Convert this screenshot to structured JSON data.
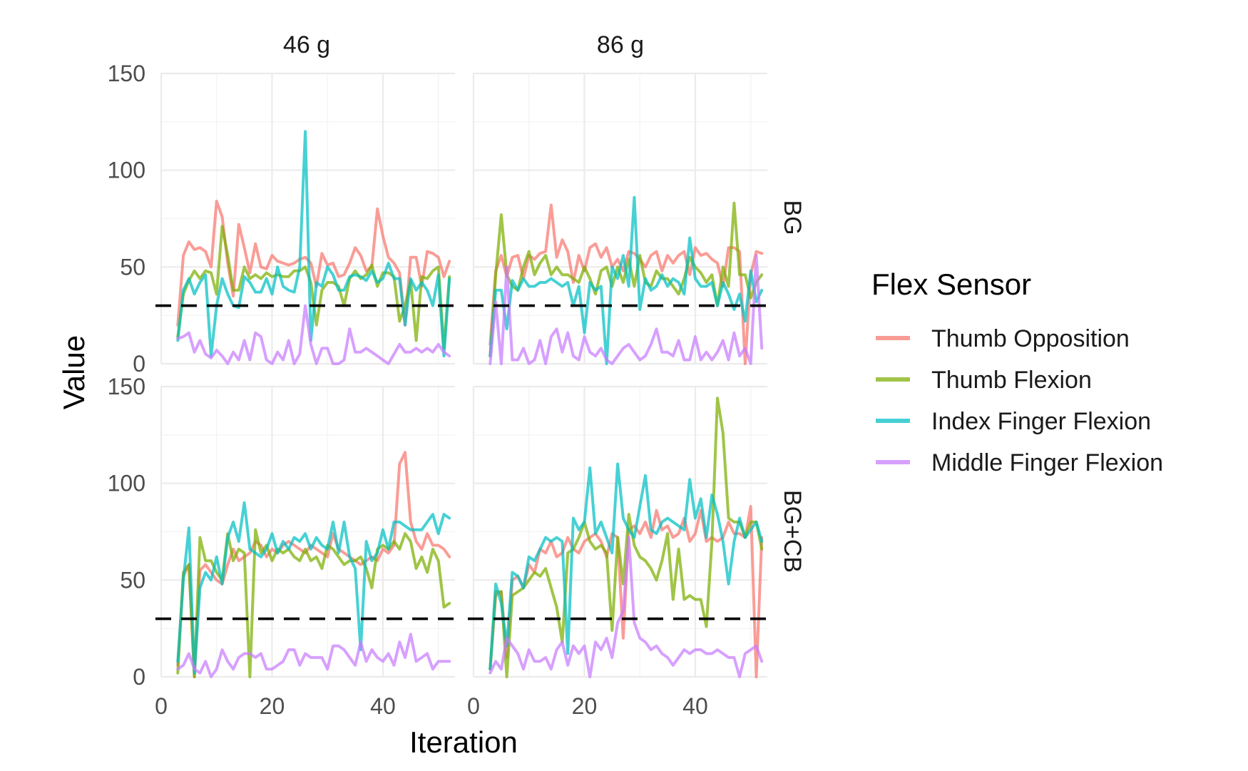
{
  "chart_data": {
    "type": "line",
    "layout": "facet-grid",
    "xlabel": "Iteration",
    "ylabel": "Value",
    "xlim": [
      0,
      53
    ],
    "ylim": [
      0,
      150
    ],
    "x_ticks": [
      0,
      20,
      40
    ],
    "y_ticks": [
      0,
      50,
      100,
      150
    ],
    "threshold": 30,
    "column_labels": [
      "46 g",
      "86 g"
    ],
    "row_labels": [
      "BG",
      "BG+CB"
    ],
    "grid": true,
    "legend": {
      "title": "Flex Sensor",
      "position": "right",
      "entries": [
        {
          "name": "Thumb Opposition",
          "color": "#f8766d"
        },
        {
          "name": "Thumb Flexion",
          "color": "#7cae00"
        },
        {
          "name": "Index Finger Flexion",
          "color": "#00bfc4"
        },
        {
          "name": "Middle Finger Flexion",
          "color": "#c77cff"
        }
      ]
    },
    "x": [
      3,
      4,
      5,
      6,
      7,
      8,
      9,
      10,
      11,
      12,
      13,
      14,
      15,
      16,
      17,
      18,
      19,
      20,
      21,
      22,
      23,
      24,
      25,
      26,
      27,
      28,
      29,
      30,
      31,
      32,
      33,
      34,
      35,
      36,
      37,
      38,
      39,
      40,
      41,
      42,
      43,
      44,
      45,
      46,
      47,
      48,
      49,
      50,
      51,
      52
    ],
    "panels": [
      {
        "row": "BG",
        "col": "46 g",
        "series": [
          {
            "name": "Thumb Opposition",
            "values": [
              20,
              56,
              63,
              59,
              60,
              58,
              50,
              84,
              76,
              52,
              35,
              72,
              60,
              47,
              62,
              50,
              49,
              56,
              53,
              52,
              51,
              52,
              54,
              55,
              52,
              40,
              57,
              51,
              52,
              45,
              46,
              52,
              60,
              56,
              48,
              50,
              80,
              66,
              55,
              52,
              47,
              20,
              55,
              55,
              40,
              58,
              57,
              55,
              45,
              53
            ]
          },
          {
            "name": "Thumb Flexion",
            "values": [
              14,
              36,
              43,
              48,
              44,
              48,
              47,
              36,
              71,
              56,
              38,
              38,
              50,
              44,
              46,
              44,
              47,
              45,
              46,
              45,
              45,
              48,
              48,
              50,
              42,
              20,
              38,
              42,
              42,
              40,
              30,
              44,
              48,
              44,
              46,
              51,
              40,
              47,
              47,
              45,
              22,
              30,
              43,
              12,
              45,
              44,
              48,
              50,
              8,
              45
            ]
          },
          {
            "name": "Index Finger Flexion",
            "values": [
              12,
              38,
              44,
              36,
              42,
              46,
              4,
              30,
              44,
              36,
              30,
              29,
              45,
              42,
              37,
              37,
              44,
              36,
              50,
              40,
              38,
              37,
              50,
              120,
              12,
              42,
              40,
              50,
              46,
              38,
              38,
              45,
              46,
              45,
              43,
              48,
              42,
              44,
              52,
              44,
              44,
              20,
              44,
              38,
              42,
              38,
              30,
              46,
              4,
              44
            ]
          },
          {
            "name": "Middle Finger Flexion",
            "values": [
              13,
              14,
              16,
              6,
              12,
              5,
              3,
              7,
              4,
              0,
              6,
              2,
              12,
              2,
              16,
              14,
              2,
              0,
              6,
              2,
              12,
              0,
              5,
              30,
              10,
              0,
              8,
              8,
              0,
              0,
              2,
              18,
              6,
              6,
              8,
              6,
              4,
              2,
              0,
              5,
              10,
              6,
              6,
              8,
              6,
              8,
              6,
              10,
              6,
              4
            ]
          }
        ]
      },
      {
        "row": "BG",
        "col": "86 g",
        "series": [
          {
            "name": "Thumb Opposition",
            "values": [
              10,
              48,
              56,
              45,
              55,
              56,
              44,
              56,
              54,
              57,
              58,
              82,
              55,
              64,
              58,
              42,
              56,
              48,
              60,
              62,
              55,
              60,
              50,
              54,
              48,
              58,
              57,
              54,
              50,
              56,
              58,
              48,
              56,
              52,
              56,
              58,
              46,
              60,
              56,
              57,
              54,
              52,
              40,
              60,
              60,
              58,
              0,
              46,
              58,
              57
            ]
          },
          {
            "name": "Thumb Flexion",
            "values": [
              4,
              46,
              77,
              46,
              40,
              38,
              50,
              58,
              46,
              52,
              56,
              46,
              50,
              46,
              46,
              44,
              42,
              50,
              44,
              36,
              48,
              50,
              40,
              50,
              42,
              54,
              40,
              56,
              42,
              40,
              48,
              44,
              44,
              40,
              36,
              44,
              55,
              50,
              47,
              42,
              46,
              30,
              50,
              40,
              83,
              46,
              46,
              34,
              42,
              46
            ]
          },
          {
            "name": "Index Finger Flexion",
            "values": [
              4,
              38,
              38,
              18,
              43,
              38,
              44,
              40,
              40,
              42,
              42,
              44,
              42,
              40,
              42,
              30,
              40,
              16,
              42,
              38,
              40,
              0,
              50,
              44,
              56,
              40,
              86,
              28,
              44,
              38,
              40,
              46,
              40,
              44,
              42,
              36,
              65,
              44,
              40,
              40,
              42,
              30,
              42,
              36,
              28,
              36,
              22,
              48,
              32,
              38
            ]
          },
          {
            "name": "Middle Finger Flexion",
            "values": [
              0,
              32,
              0,
              50,
              2,
              2,
              8,
              0,
              2,
              12,
              0,
              14,
              18,
              6,
              16,
              4,
              2,
              14,
              6,
              4,
              8,
              2,
              0,
              4,
              8,
              10,
              6,
              2,
              4,
              10,
              18,
              6,
              6,
              4,
              12,
              2,
              2,
              14,
              2,
              6,
              2,
              6,
              12,
              2,
              16,
              4,
              8,
              0,
              56,
              8
            ]
          }
        ]
      },
      {
        "row": "BG+CB",
        "col": "46 g",
        "series": [
          {
            "name": "Thumb Opposition",
            "values": [
              6,
              52,
              58,
              0,
              55,
              58,
              54,
              50,
              48,
              58,
              66,
              60,
              62,
              64,
              70,
              68,
              62,
              66,
              64,
              68,
              70,
              68,
              66,
              64,
              68,
              66,
              64,
              62,
              74,
              66,
              64,
              62,
              60,
              58,
              60,
              62,
              60,
              66,
              64,
              68,
              110,
              116,
              80,
              70,
              66,
              74,
              68,
              68,
              66,
              62
            ]
          },
          {
            "name": "Thumb Flexion",
            "values": [
              2,
              54,
              58,
              0,
              72,
              60,
              60,
              54,
              50,
              74,
              60,
              66,
              64,
              0,
              76,
              64,
              68,
              60,
              66,
              64,
              66,
              62,
              60,
              66,
              60,
              62,
              56,
              68,
              66,
              62,
              58,
              60,
              60,
              62,
              56,
              46,
              66,
              68,
              66,
              70,
              66,
              74,
              70,
              56,
              62,
              54,
              66,
              60,
              36,
              38
            ]
          },
          {
            "name": "Index Finger Flexion",
            "values": [
              8,
              50,
              77,
              2,
              46,
              54,
              50,
              62,
              48,
              72,
              80,
              70,
              90,
              66,
              64,
              62,
              66,
              74,
              64,
              70,
              66,
              72,
              70,
              74,
              66,
              72,
              68,
              66,
              80,
              64,
              80,
              62,
              56,
              14,
              70,
              60,
              64,
              76,
              66,
              80,
              80,
              78,
              76,
              76,
              76,
              80,
              84,
              74,
              84,
              82
            ]
          },
          {
            "name": "Middle Finger Flexion",
            "values": [
              4,
              6,
              12,
              4,
              2,
              8,
              0,
              4,
              14,
              8,
              4,
              10,
              12,
              12,
              10,
              12,
              4,
              4,
              6,
              8,
              14,
              14,
              6,
              12,
              10,
              10,
              10,
              4,
              16,
              16,
              14,
              10,
              6,
              18,
              8,
              14,
              10,
              8,
              12,
              6,
              18,
              10,
              22,
              8,
              10,
              12,
              4,
              8,
              8,
              8
            ]
          }
        ]
      },
      {
        "row": "BG+CB",
        "col": "86 g",
        "series": [
          {
            "name": "Thumb Opposition",
            "values": [
              4,
              42,
              44,
              10,
              50,
              52,
              46,
              58,
              54,
              66,
              64,
              70,
              62,
              64,
              72,
              66,
              64,
              70,
              72,
              74,
              70,
              62,
              74,
              72,
              20,
              76,
              78,
              74,
              80,
              72,
              86,
              76,
              78,
              72,
              74,
              82,
              70,
              74,
              86,
              70,
              72,
              70,
              72,
              80,
              74,
              74,
              72,
              88,
              0,
              72
            ]
          },
          {
            "name": "Thumb Flexion",
            "values": [
              4,
              44,
              44,
              0,
              42,
              44,
              46,
              50,
              54,
              52,
              56,
              46,
              36,
              18,
              64,
              66,
              72,
              80,
              70,
              66,
              68,
              64,
              24,
              72,
              48,
              84,
              68,
              62,
              60,
              56,
              50,
              60,
              74,
              40,
              66,
              40,
              42,
              40,
              40,
              26,
              70,
              144,
              126,
              82,
              80,
              80,
              72,
              80,
              80,
              66
            ]
          },
          {
            "name": "Index Finger Flexion",
            "values": [
              4,
              48,
              38,
              16,
              54,
              52,
              46,
              62,
              60,
              66,
              72,
              70,
              72,
              70,
              12,
              82,
              76,
              80,
              108,
              74,
              80,
              72,
              64,
              110,
              82,
              76,
              72,
              88,
              104,
              76,
              74,
              80,
              82,
              80,
              78,
              76,
              102,
              82,
              92,
              72,
              94,
              84,
              70,
              48,
              70,
              82,
              72,
              76,
              80,
              70
            ]
          },
          {
            "name": "Middle Finger Flexion",
            "values": [
              2,
              8,
              4,
              20,
              16,
              12,
              4,
              14,
              8,
              8,
              10,
              4,
              14,
              18,
              6,
              16,
              12,
              16,
              0,
              18,
              14,
              20,
              10,
              28,
              34,
              72,
              28,
              20,
              18,
              14,
              16,
              12,
              10,
              6,
              10,
              14,
              12,
              14,
              14,
              12,
              12,
              14,
              12,
              10,
              10,
              0,
              12,
              14,
              16,
              8
            ]
          }
        ]
      }
    ]
  }
}
